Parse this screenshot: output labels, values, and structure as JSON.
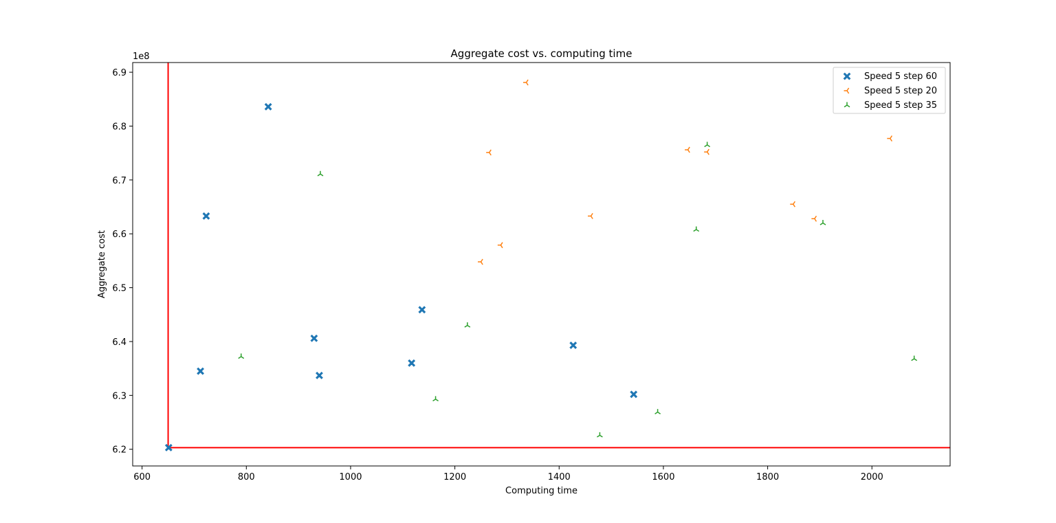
{
  "chart_data": {
    "type": "scatter",
    "title": "Aggregate cost vs. computing time",
    "xlabel": "Computing time",
    "ylabel": "Aggregate cost",
    "y_offset_text": "1e8",
    "xlim": [
      582,
      2150
    ],
    "ylim": [
      6.169,
      6.918
    ],
    "x_ticks": [
      600,
      800,
      1000,
      1200,
      1400,
      1600,
      1800,
      2000
    ],
    "y_ticks": [
      6.2,
      6.3,
      6.4,
      6.5,
      6.6,
      6.7,
      6.8,
      6.9
    ],
    "x_tick_labels": [
      "600",
      "800",
      "1000",
      "1200",
      "1400",
      "1600",
      "1800",
      "2000"
    ],
    "y_tick_labels": [
      "6.2",
      "6.3",
      "6.4",
      "6.5",
      "6.6",
      "6.7",
      "6.8",
      "6.9"
    ],
    "grid": false,
    "legend_position": "top-right",
    "reference_lines": {
      "x": 650,
      "y": 6.203,
      "color": "#ff0000"
    },
    "series": [
      {
        "name": "Speed 5 step 60",
        "color": "#1f77b4",
        "marker": "X",
        "points": [
          [
            651,
            6.203
          ],
          [
            712,
            6.345
          ],
          [
            723,
            6.633
          ],
          [
            842,
            6.836
          ],
          [
            930,
            6.406
          ],
          [
            940,
            6.337
          ],
          [
            1117,
            6.36
          ],
          [
            1137,
            6.459
          ],
          [
            1427,
            6.393
          ],
          [
            1543,
            6.302
          ]
        ]
      },
      {
        "name": "Speed 5 step 20",
        "color": "#ff7f0e",
        "marker": "tri_left",
        "points": [
          [
            1250,
            6.548
          ],
          [
            1266,
            6.751
          ],
          [
            1288,
            6.579
          ],
          [
            1337,
            6.881
          ],
          [
            1461,
            6.633
          ],
          [
            1647,
            6.756
          ],
          [
            1684,
            6.752
          ],
          [
            1849,
            6.655
          ],
          [
            1890,
            6.628
          ],
          [
            2035,
            6.777
          ]
        ]
      },
      {
        "name": "Speed 5 step 35",
        "color": "#2ca02c",
        "marker": "tri_up",
        "points": [
          [
            790,
            6.372
          ],
          [
            942,
            6.711
          ],
          [
            1163,
            6.293
          ],
          [
            1224,
            6.43
          ],
          [
            1478,
            6.226
          ],
          [
            1589,
            6.269
          ],
          [
            1663,
            6.608
          ],
          [
            1684,
            6.765
          ],
          [
            1906,
            6.62
          ],
          [
            2081,
            6.368
          ]
        ]
      }
    ]
  }
}
